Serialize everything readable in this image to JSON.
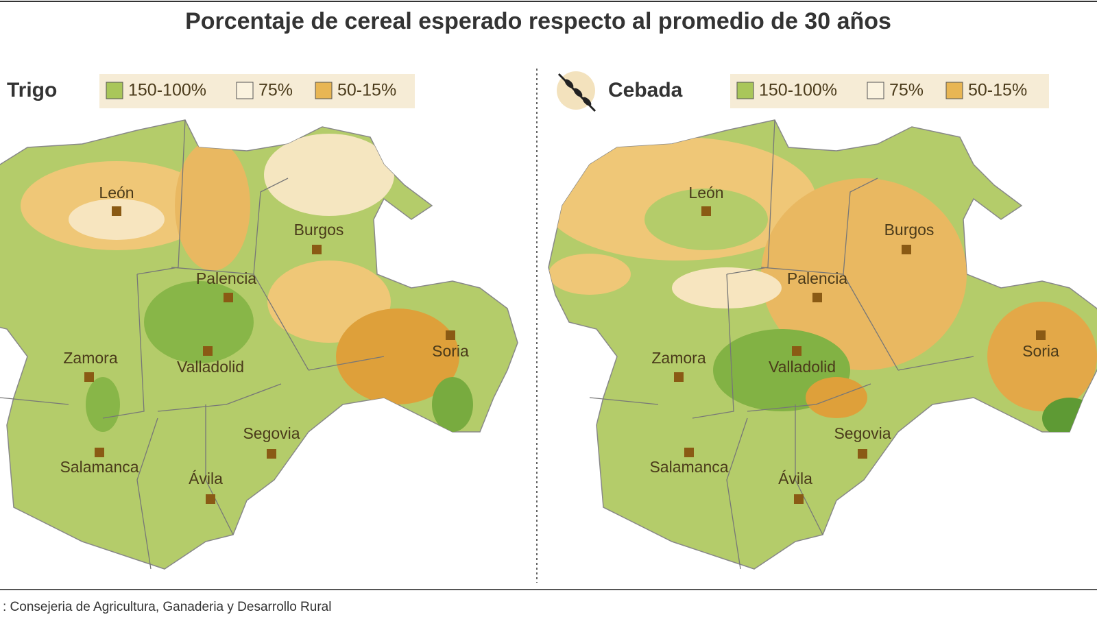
{
  "header": {
    "title": "Porcentaje de cereal esperado respecto al promedio de 30 años"
  },
  "panels": [
    {
      "title": "Trigo",
      "legend": [
        {
          "label": "150-100%",
          "color": "#a9c65a"
        },
        {
          "label": "75%",
          "color": "#fbf3df"
        },
        {
          "label": "50-15%",
          "color": "#e8b654"
        }
      ],
      "cities": [
        "León",
        "Burgos",
        "Palencia",
        "Zamora",
        "Valladolid",
        "Soria",
        "Segovia",
        "Salamanca",
        "Ávila"
      ]
    },
    {
      "title": "Cebada",
      "legend": [
        {
          "label": "150-100%",
          "color": "#a9c65a"
        },
        {
          "label": "75%",
          "color": "#fbf3df"
        },
        {
          "label": "50-15%",
          "color": "#e8b654"
        }
      ],
      "cities": [
        "León",
        "Burgos",
        "Palencia",
        "Zamora",
        "Valladolid",
        "Soria",
        "Segovia",
        "Salamanca",
        "Ávila"
      ]
    }
  ],
  "footer": {
    "source": ": Consejeria de Agricultura, Ganaderia y Desarrollo Rural"
  }
}
